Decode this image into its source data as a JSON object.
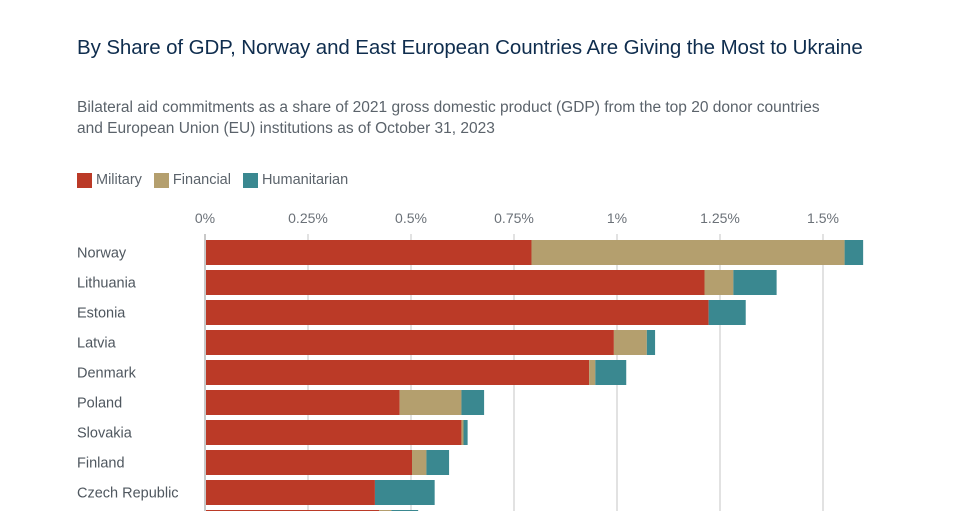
{
  "title": "By Share of GDP, Norway and East European Countries Are Giving the Most to Ukraine",
  "subtitle": "Bilateral aid commitments as a share of 2021 gross domestic product (GDP) from the top 20 donor countries and European Union (EU) institutions as of October 31, 2023",
  "legend": [
    {
      "label": "Military",
      "color": "#bb3a27"
    },
    {
      "label": "Financial",
      "color": "#b49f6e"
    },
    {
      "label": "Humanitarian",
      "color": "#3a8890"
    }
  ],
  "chart_data": {
    "type": "bar",
    "orientation": "horizontal",
    "stacked": true,
    "title": "By Share of GDP, Norway and East European Countries Are Giving the Most to Ukraine",
    "xlabel": "",
    "ylabel": "",
    "xlim": [
      0,
      1.6
    ],
    "x_ticks": [
      0,
      0.25,
      0.5,
      0.75,
      1,
      1.25,
      1.5
    ],
    "x_tick_labels": [
      "0%",
      "0.25%",
      "0.5%",
      "0.75%",
      "1%",
      "1.25%",
      "1.5%"
    ],
    "grid": true,
    "legend_position": "top-left",
    "categories": [
      "Norway",
      "Lithuania",
      "Estonia",
      "Latvia",
      "Denmark",
      "Poland",
      "Slovakia",
      "Finland",
      "Czech Republic",
      ""
    ],
    "series": [
      {
        "name": "Military",
        "color": "#bb3a27",
        "values": [
          0.79,
          1.21,
          1.22,
          0.99,
          0.93,
          0.47,
          0.62,
          0.5,
          0.41,
          0.42
        ]
      },
      {
        "name": "Financial",
        "color": "#b49f6e",
        "values": [
          0.76,
          0.07,
          0.0,
          0.08,
          0.015,
          0.15,
          0.005,
          0.035,
          0.0,
          0.03
        ]
      },
      {
        "name": "Humanitarian",
        "color": "#3a8890",
        "values": [
          0.045,
          0.105,
          0.09,
          0.02,
          0.075,
          0.055,
          0.01,
          0.055,
          0.145,
          0.065
        ]
      }
    ],
    "unit": "% of 2021 GDP"
  }
}
